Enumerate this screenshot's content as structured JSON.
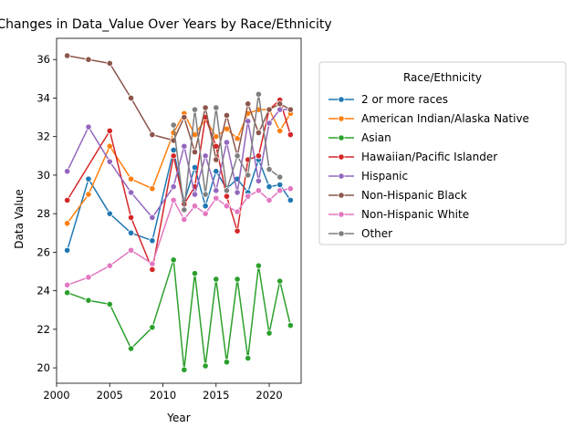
{
  "chart_data": {
    "type": "line",
    "title": "Changes in Data_Value Over Years by Race/Ethnicity",
    "xlabel": "Year",
    "ylabel": "Data Value",
    "xlim": [
      2000,
      2023
    ],
    "ylim": [
      19.2,
      37.1
    ],
    "xticks": [
      2000,
      2005,
      2010,
      2015,
      2020
    ],
    "yticks": [
      20,
      22,
      24,
      26,
      28,
      30,
      32,
      34,
      36
    ],
    "grid": false,
    "legend": {
      "title": "Race/Ethnicity",
      "placement": "outside right, top"
    },
    "series": [
      {
        "name": "2 or more races",
        "color": "#1f77b4",
        "points": [
          [
            2001,
            26.1
          ],
          [
            2003,
            29.8
          ],
          [
            2005,
            28.0
          ],
          [
            2007,
            27.0
          ],
          [
            2009,
            26.6
          ],
          [
            2011,
            31.3
          ],
          [
            2012,
            28.6
          ],
          [
            2013,
            30.4
          ],
          [
            2014,
            28.4
          ],
          [
            2015,
            30.2
          ],
          [
            2016,
            29.3
          ],
          [
            2017,
            29.8
          ],
          [
            2018,
            29.1
          ],
          [
            2019,
            30.8
          ],
          [
            2020,
            29.4
          ],
          [
            2021,
            29.5
          ],
          [
            2022,
            28.7
          ]
        ]
      },
      {
        "name": "American Indian/Alaska Native",
        "color": "#ff7f0e",
        "points": [
          [
            2001,
            27.5
          ],
          [
            2003,
            29.0
          ],
          [
            2005,
            31.5
          ],
          [
            2007,
            29.8
          ],
          [
            2009,
            29.3
          ],
          [
            2011,
            32.2
          ],
          [
            2012,
            33.2
          ],
          [
            2013,
            32.1
          ],
          [
            2014,
            32.9
          ],
          [
            2015,
            32.0
          ],
          [
            2016,
            32.4
          ],
          [
            2017,
            31.9
          ],
          [
            2018,
            33.2
          ],
          [
            2019,
            33.4
          ],
          [
            2020,
            33.4
          ],
          [
            2021,
            32.3
          ],
          [
            2022,
            33.2
          ]
        ]
      },
      {
        "name": "Asian",
        "color": "#2ca02c",
        "points": [
          [
            2001,
            23.9
          ],
          [
            2003,
            23.5
          ],
          [
            2005,
            23.3
          ],
          [
            2007,
            21.0
          ],
          [
            2009,
            22.1
          ],
          [
            2011,
            25.6
          ],
          [
            2012,
            19.9
          ],
          [
            2013,
            24.9
          ],
          [
            2014,
            20.1
          ],
          [
            2015,
            24.6
          ],
          [
            2016,
            20.3
          ],
          [
            2017,
            24.6
          ],
          [
            2018,
            20.5
          ],
          [
            2019,
            25.3
          ],
          [
            2020,
            21.8
          ],
          [
            2021,
            24.5
          ],
          [
            2022,
            22.2
          ]
        ]
      },
      {
        "name": "Hawaiian/Pacific Islander",
        "color": "#d62728",
        "points": [
          [
            2001,
            28.7
          ],
          [
            2005,
            32.3
          ],
          [
            2007,
            27.8
          ],
          [
            2009,
            25.1
          ],
          [
            2011,
            31.0
          ],
          [
            2012,
            28.5
          ],
          [
            2013,
            29.4
          ],
          [
            2014,
            33.0
          ],
          [
            2015,
            31.5
          ],
          [
            2016,
            28.9
          ],
          [
            2017,
            27.1
          ],
          [
            2018,
            30.8
          ],
          [
            2019,
            31.0
          ],
          [
            2020,
            33.4
          ],
          [
            2021,
            33.9
          ],
          [
            2022,
            32.1
          ]
        ]
      },
      {
        "name": "Hispanic",
        "color": "#9467bd",
        "points": [
          [
            2001,
            30.2
          ],
          [
            2003,
            32.5
          ],
          [
            2005,
            30.7
          ],
          [
            2007,
            29.1
          ],
          [
            2009,
            27.8
          ],
          [
            2011,
            29.4
          ],
          [
            2012,
            31.5
          ],
          [
            2013,
            29.0
          ],
          [
            2014,
            31.0
          ],
          [
            2015,
            29.2
          ],
          [
            2016,
            31.7
          ],
          [
            2017,
            29.1
          ],
          [
            2018,
            32.8
          ],
          [
            2019,
            29.7
          ],
          [
            2020,
            32.7
          ],
          [
            2021,
            33.4
          ],
          [
            2022,
            33.4
          ]
        ]
      },
      {
        "name": "Non-Hispanic Black",
        "color": "#8c564b",
        "points": [
          [
            2001,
            36.2
          ],
          [
            2003,
            36.0
          ],
          [
            2005,
            35.8
          ],
          [
            2007,
            34.0
          ],
          [
            2009,
            32.1
          ],
          [
            2011,
            31.8
          ],
          [
            2012,
            33.0
          ],
          [
            2013,
            31.2
          ],
          [
            2014,
            33.5
          ],
          [
            2015,
            30.8
          ],
          [
            2016,
            33.1
          ],
          [
            2017,
            31.0
          ],
          [
            2018,
            33.7
          ],
          [
            2019,
            32.2
          ],
          [
            2020,
            33.4
          ],
          [
            2021,
            33.7
          ],
          [
            2022,
            33.4
          ]
        ]
      },
      {
        "name": "Non-Hispanic White",
        "color": "#e377c2",
        "points": [
          [
            2001,
            24.3
          ],
          [
            2003,
            24.7
          ],
          [
            2005,
            25.3
          ],
          [
            2007,
            26.1
          ],
          [
            2009,
            25.4
          ],
          [
            2011,
            28.7
          ],
          [
            2012,
            27.7
          ],
          [
            2013,
            28.4
          ],
          [
            2014,
            28.0
          ],
          [
            2015,
            28.8
          ],
          [
            2016,
            28.4
          ],
          [
            2017,
            28.1
          ],
          [
            2018,
            28.9
          ],
          [
            2019,
            29.2
          ],
          [
            2020,
            28.7
          ],
          [
            2021,
            29.2
          ],
          [
            2022,
            29.3
          ]
        ]
      },
      {
        "name": "Other",
        "color": "#7f7f7f",
        "points": [
          [
            2011,
            32.6
          ],
          [
            2012,
            28.2
          ],
          [
            2013,
            33.4
          ],
          [
            2014,
            29.0
          ],
          [
            2015,
            33.5
          ],
          [
            2016,
            29.2
          ],
          [
            2017,
            31.0
          ],
          [
            2018,
            30.0
          ],
          [
            2019,
            34.2
          ],
          [
            2020,
            30.3
          ],
          [
            2021,
            29.9
          ]
        ]
      }
    ]
  }
}
